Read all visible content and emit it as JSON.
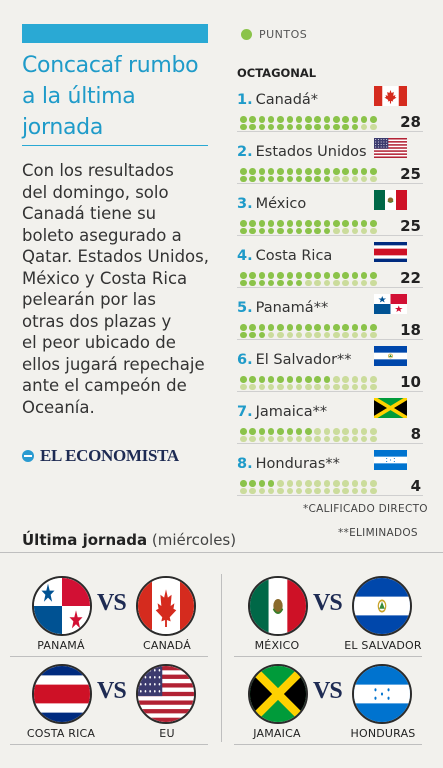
{
  "header": {
    "title_line1": "Concacaf rumbo",
    "title_line2": "a la última",
    "title_line3": "jornada"
  },
  "body_lines": [
    "Con los resultados",
    "del domingo, solo",
    "Canadá tiene su",
    "boleto asegurado a",
    "Qatar. Estados Unidos,",
    "México y Costa Rica",
    "pelearán por las",
    "otras dos plazas y",
    "el peor ubicado de",
    "ellos jugará repechaje",
    "ante el campeón de",
    "Oceanía."
  ],
  "logo_text": "EL ECONOMISTA",
  "legend_label": "PUNTOS",
  "octagonal_label": "OCTAGONAL",
  "colors": {
    "accent": "#1f9bc9",
    "points_dot": "#8bc34a",
    "empty_dot": "#cbdc9c"
  },
  "standings": [
    {
      "rank": "1.",
      "team": "Canadá",
      "mark": "*",
      "points": 28,
      "flag": "canada"
    },
    {
      "rank": "2.",
      "team": "Estados Unidos",
      "mark": "",
      "points": 25,
      "flag": "usa"
    },
    {
      "rank": "3.",
      "team": "México",
      "mark": "",
      "points": 25,
      "flag": "mexico"
    },
    {
      "rank": "4.",
      "team": "Costa Rica",
      "mark": "",
      "points": 22,
      "flag": "costarica"
    },
    {
      "rank": "5.",
      "team": "Panamá",
      "mark": "**",
      "points": 18,
      "flag": "panama"
    },
    {
      "rank": "6.",
      "team": "El Salvador",
      "mark": "**",
      "points": 10,
      "flag": "elsalvador"
    },
    {
      "rank": "7.",
      "team": "Jamaica",
      "mark": "**",
      "points": 8,
      "flag": "jamaica"
    },
    {
      "rank": "8.",
      "team": "Honduras",
      "mark": "**",
      "points": 4,
      "flag": "honduras"
    }
  ],
  "footnote1": "*CALIFICADO DIRECTO",
  "footnote2": "**ELIMINADOS",
  "ultima_title": "Última jornada",
  "ultima_sub": "(miércoles)",
  "vs_label": "VS",
  "matches": [
    {
      "home": "PANAMÁ",
      "away": "CANADÁ",
      "home_flag": "panama",
      "away_flag": "canada"
    },
    {
      "home": "MÉXICO",
      "away": "EL SALVADOR",
      "home_flag": "mexico",
      "away_flag": "elsalvador"
    },
    {
      "home": "COSTA RICA",
      "away": "EU",
      "home_flag": "costarica",
      "away_flag": "usa"
    },
    {
      "home": "JAMAICA",
      "away": "HONDURAS",
      "home_flag": "jamaica",
      "away_flag": "honduras"
    }
  ]
}
